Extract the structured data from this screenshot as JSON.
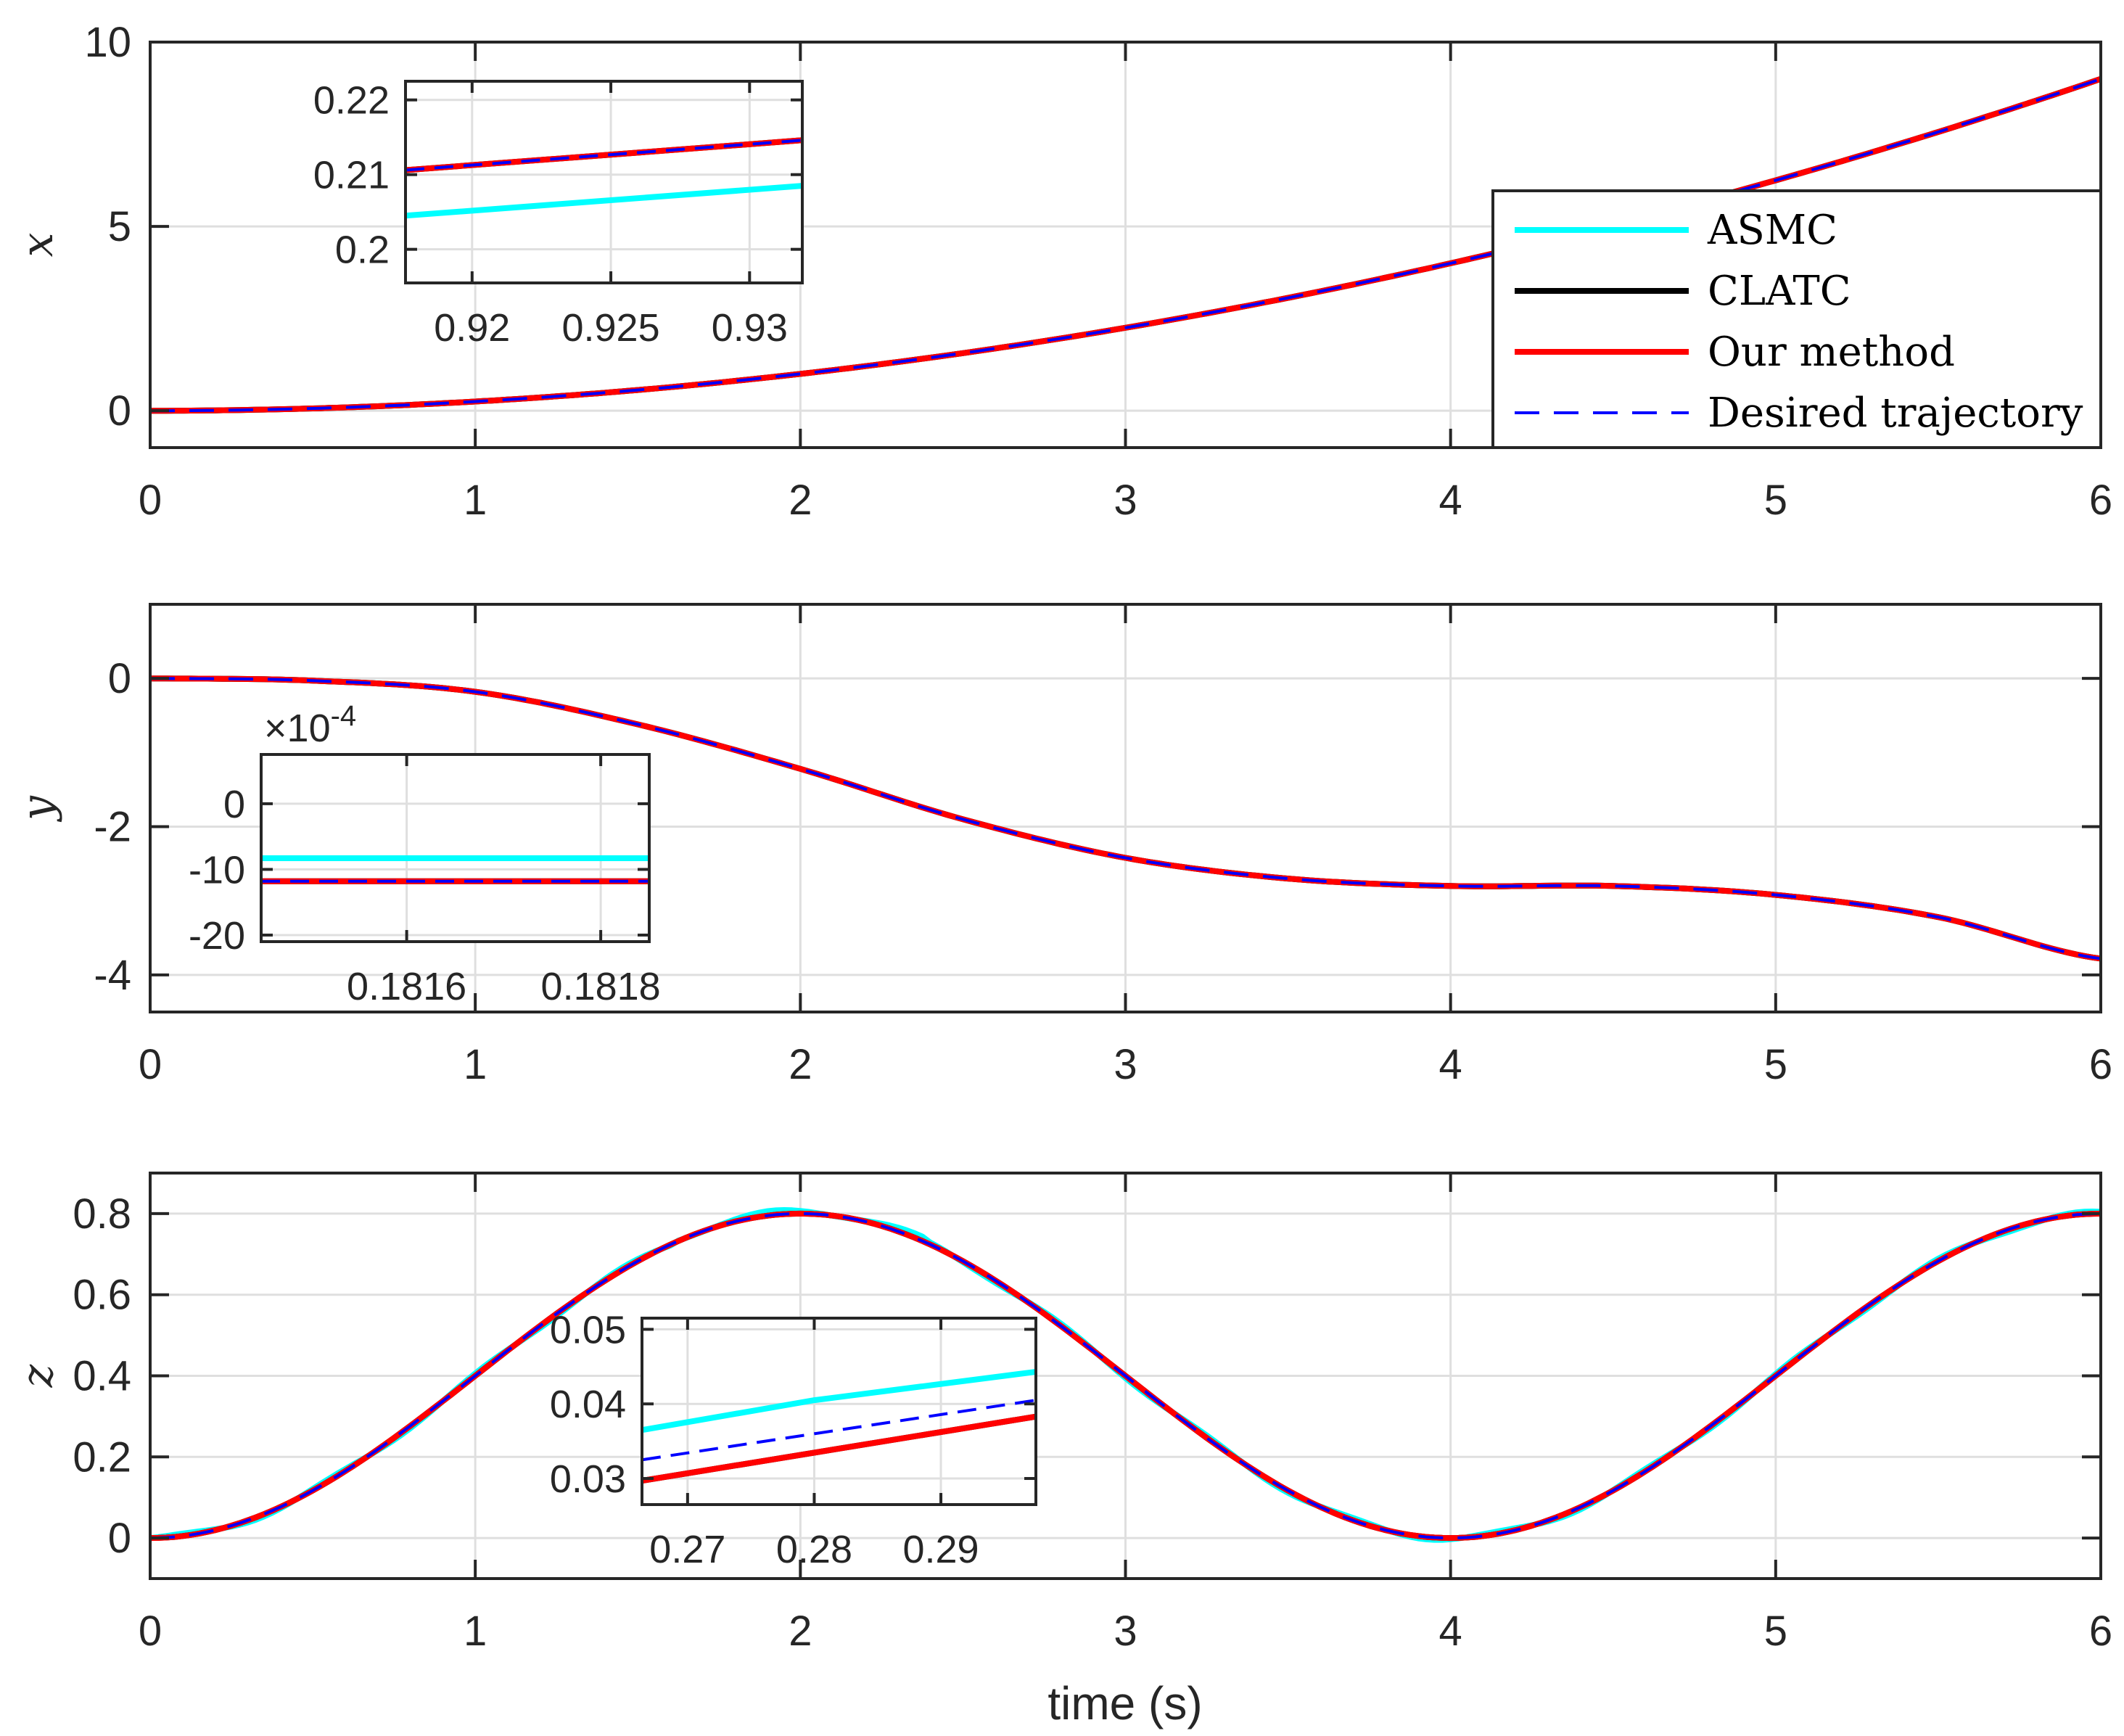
{
  "figure": {
    "xlabel": "time (s)",
    "legend": {
      "placement": "inside top panel, right side",
      "entries": [
        {
          "label": "ASMC",
          "color": "#00ffff",
          "style": "solid"
        },
        {
          "label": "CLATC",
          "color": "#000000",
          "style": "solid"
        },
        {
          "label": "Our method",
          "color": "#ff0000",
          "style": "solid"
        },
        {
          "label": "Desired trajectory",
          "color": "#0000ff",
          "style": "dashed"
        }
      ]
    }
  },
  "chart_data": [
    {
      "type": "line",
      "panel": "x",
      "ylabel": "x",
      "xlim": [
        0,
        6
      ],
      "ylim": [
        -1,
        10
      ],
      "xticks": [
        "0",
        "1",
        "2",
        "3",
        "4",
        "5",
        "6"
      ],
      "yticks": [
        "0",
        "5",
        "10"
      ],
      "ytick_values": [
        0,
        5,
        10
      ],
      "grid": true,
      "desired": "x = 0.25 t^2",
      "x": [
        0,
        0.5,
        1,
        1.5,
        2,
        2.5,
        3,
        3.5,
        4,
        4.5,
        5,
        5.5,
        6
      ],
      "series": [
        {
          "name": "ASMC",
          "color": "#00ffff",
          "values": [
            0,
            0.0625,
            0.25,
            0.5625,
            1.0,
            1.5625,
            2.25,
            3.0625,
            4.0,
            5.0625,
            6.25,
            7.5625,
            9.0
          ]
        },
        {
          "name": "CLATC",
          "color": "#000000",
          "values": [
            0,
            0.0625,
            0.25,
            0.5625,
            1.0,
            1.5625,
            2.25,
            3.0625,
            4.0,
            5.0625,
            6.25,
            7.5625,
            9.0
          ]
        },
        {
          "name": "Our method",
          "color": "#ff0000",
          "values": [
            0,
            0.0625,
            0.25,
            0.5625,
            1.0,
            1.5625,
            2.25,
            3.0625,
            4.0,
            5.0625,
            6.25,
            7.5625,
            9.0
          ]
        },
        {
          "name": "Desired trajectory",
          "color": "#0000ff",
          "values": [
            0,
            0.0625,
            0.25,
            0.5625,
            1.0,
            1.5625,
            2.25,
            3.0625,
            4.0,
            5.0625,
            6.25,
            7.5625,
            9.0
          ]
        }
      ],
      "inset": {
        "xlim": [
          0.9176,
          0.9319
        ],
        "ylim": [
          0.1955,
          0.2225
        ],
        "xticks": [
          "0.92",
          "0.925",
          "0.93"
        ],
        "xtick_values": [
          0.92,
          0.925,
          0.93
        ],
        "yticks": [
          "0.2",
          "0.21",
          "0.22"
        ],
        "ytick_values": [
          0.2,
          0.21,
          0.22
        ],
        "lines": [
          {
            "name": "ASMC",
            "color": "#00ffff",
            "x": [
              0.9176,
              0.9319
            ],
            "y": [
              0.2045,
              0.2085
            ]
          },
          {
            "name": "CLATC",
            "color": "#000000",
            "x": [
              0.9176,
              0.9319
            ],
            "y": [
              0.2106,
              0.2146
            ]
          },
          {
            "name": "Our method",
            "color": "#ff0000",
            "x": [
              0.9176,
              0.9319
            ],
            "y": [
              0.2106,
              0.2146
            ]
          },
          {
            "name": "Desired trajectory",
            "color": "#0000ff",
            "x": [
              0.9176,
              0.9319
            ],
            "y": [
              0.2106,
              0.2146
            ]
          }
        ]
      }
    },
    {
      "type": "line",
      "panel": "y",
      "ylabel": "y",
      "xlim": [
        0,
        6
      ],
      "ylim": [
        -4.5,
        1
      ],
      "xticks": [
        "0",
        "1",
        "2",
        "3",
        "4",
        "5",
        "6"
      ],
      "yticks": [
        "0",
        "-2",
        "-4"
      ],
      "ytick_values": [
        0,
        -2,
        -4
      ],
      "grid": true,
      "x": [
        0,
        0.5,
        1,
        1.5,
        2,
        2.5,
        3,
        3.5,
        4,
        4.5,
        5,
        5.5,
        6
      ],
      "series": [
        {
          "name": "ASMC",
          "color": "#00ffff",
          "values": [
            0,
            -0.03,
            -0.18,
            -0.62,
            -1.22,
            -1.9,
            -2.42,
            -2.7,
            -2.8,
            -2.8,
            -2.92,
            -3.22,
            -3.78
          ]
        },
        {
          "name": "CLATC",
          "color": "#000000",
          "values": [
            0,
            -0.03,
            -0.18,
            -0.62,
            -1.22,
            -1.9,
            -2.42,
            -2.7,
            -2.8,
            -2.8,
            -2.92,
            -3.22,
            -3.78
          ]
        },
        {
          "name": "Our method",
          "color": "#ff0000",
          "values": [
            0,
            -0.03,
            -0.18,
            -0.62,
            -1.22,
            -1.9,
            -2.42,
            -2.7,
            -2.8,
            -2.8,
            -2.92,
            -3.22,
            -3.78
          ]
        },
        {
          "name": "Desired trajectory",
          "color": "#0000ff",
          "values": [
            0,
            -0.03,
            -0.18,
            -0.62,
            -1.22,
            -1.9,
            -2.42,
            -2.7,
            -2.8,
            -2.8,
            -2.92,
            -3.22,
            -3.78
          ]
        }
      ],
      "inset": {
        "xlim": [
          0.18145,
          0.18185
        ],
        "ylim": [
          -0.0021,
          0.00075
        ],
        "exponent": "×10",
        "exponent_power": "-4",
        "xticks": [
          "0.1816",
          "0.1818"
        ],
        "xtick_values": [
          0.1816,
          0.1818
        ],
        "yticks": [
          "0",
          "-10",
          "-20"
        ],
        "ytick_values": [
          0,
          -0.001,
          -0.002
        ],
        "lines": [
          {
            "name": "ASMC",
            "color": "#00ffff",
            "x": [
              0.18145,
              0.18185
            ],
            "y": [
              -0.00083,
              -0.00083
            ]
          },
          {
            "name": "CLATC",
            "color": "#000000",
            "x": [
              0.18145,
              0.18185
            ],
            "y": [
              -0.00118,
              -0.00118
            ]
          },
          {
            "name": "Our method",
            "color": "#ff0000",
            "x": [
              0.18145,
              0.18185
            ],
            "y": [
              -0.00118,
              -0.00118
            ]
          },
          {
            "name": "Desired trajectory",
            "color": "#0000ff",
            "x": [
              0.18145,
              0.18185
            ],
            "y": [
              -0.00118,
              -0.00118
            ]
          }
        ]
      }
    },
    {
      "type": "line",
      "panel": "z",
      "ylabel": "z",
      "xlim": [
        0,
        6
      ],
      "ylim": [
        -0.1,
        0.9
      ],
      "xticks": [
        "0",
        "1",
        "2",
        "3",
        "4",
        "5",
        "6"
      ],
      "yticks": [
        "0",
        "0.2",
        "0.4",
        "0.6",
        "0.8"
      ],
      "ytick_values": [
        0,
        0.2,
        0.4,
        0.6,
        0.8
      ],
      "grid": true,
      "desired": "z = 0.4 (1 - cos(pi t / 2))",
      "x": [
        0,
        0.5,
        1,
        1.5,
        2,
        2.5,
        3,
        3.5,
        4,
        4.5,
        5,
        5.5,
        6
      ],
      "series": [
        {
          "name": "ASMC",
          "color": "#00ffff",
          "values": [
            0,
            0.117,
            0.4,
            0.683,
            0.8,
            0.683,
            0.4,
            0.117,
            0,
            0.117,
            0.4,
            0.683,
            0.8
          ]
        },
        {
          "name": "CLATC",
          "color": "#000000",
          "values": [
            0,
            0.117,
            0.4,
            0.683,
            0.8,
            0.683,
            0.4,
            0.117,
            0,
            0.117,
            0.4,
            0.683,
            0.8
          ]
        },
        {
          "name": "Our method",
          "color": "#ff0000",
          "values": [
            0,
            0.117,
            0.4,
            0.683,
            0.8,
            0.683,
            0.4,
            0.117,
            0,
            0.117,
            0.4,
            0.683,
            0.8
          ]
        },
        {
          "name": "Desired trajectory",
          "color": "#0000ff",
          "values": [
            0,
            0.117,
            0.4,
            0.683,
            0.8,
            0.683,
            0.4,
            0.117,
            0,
            0.117,
            0.4,
            0.683,
            0.8
          ]
        }
      ],
      "inset": {
        "xlim": [
          0.2664,
          0.2975
        ],
        "ylim": [
          0.0265,
          0.0515
        ],
        "xticks": [
          "0.27",
          "0.28",
          "0.29"
        ],
        "xtick_values": [
          0.27,
          0.28,
          0.29
        ],
        "yticks": [
          "0.03",
          "0.04",
          "0.05"
        ],
        "ytick_values": [
          0.03,
          0.04,
          0.05
        ],
        "lines": [
          {
            "name": "ASMC",
            "color": "#00ffff",
            "x": [
              0.2664,
              0.28,
              0.2975
            ],
            "y": [
              0.0365,
              0.0405,
              0.0443
            ]
          },
          {
            "name": "CLATC",
            "color": "#000000",
            "x": [
              0.2664,
              0.2975
            ],
            "y": [
              0.0297,
              0.0383
            ]
          },
          {
            "name": "Our method",
            "color": "#ff0000",
            "x": [
              0.2664,
              0.2975
            ],
            "y": [
              0.0297,
              0.0383
            ]
          },
          {
            "name": "Desired trajectory",
            "color": "#0000ff",
            "x": [
              0.2664,
              0.2975
            ],
            "y": [
              0.0325,
              0.0405
            ]
          }
        ]
      }
    }
  ]
}
